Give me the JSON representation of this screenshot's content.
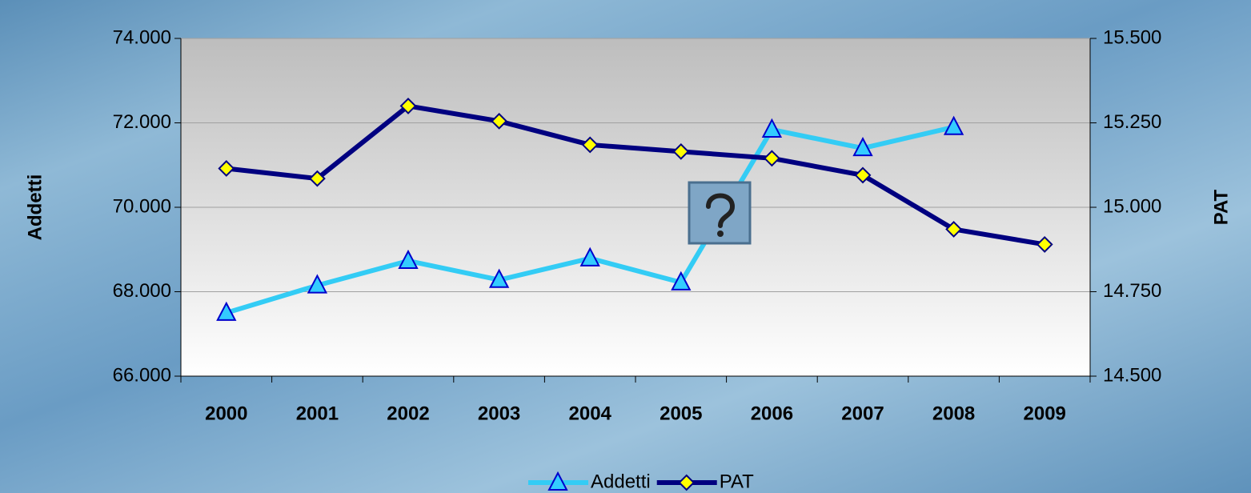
{
  "chart_data": {
    "type": "line",
    "categories": [
      "2000",
      "2001",
      "2002",
      "2003",
      "2004",
      "2005",
      "2006",
      "2007",
      "2008",
      "2009"
    ],
    "series": [
      {
        "name": "Addetti",
        "color": "#33ccf5",
        "marker_fill": "#33ccff",
        "marker_stroke": "#0000cc",
        "values": [
          67500,
          68150,
          68730,
          68280,
          68790,
          68220,
          71840,
          71400,
          71900,
          null
        ]
      },
      {
        "name": "PAT",
        "axis": "y2",
        "color": "#000080",
        "marker_fill": "#ffff00",
        "marker_stroke": "#000080",
        "values": [
          15115,
          15085,
          15300,
          15255,
          15185,
          15165,
          15145,
          15095,
          14935,
          14890
        ]
      }
    ],
    "ylabel": "Addetti",
    "y2label": "PAT",
    "ylim": [
      66000,
      74000
    ],
    "yticks": [
      {
        "value": 66000,
        "label": "66.000"
      },
      {
        "value": 68000,
        "label": "68.000"
      },
      {
        "value": 70000,
        "label": "70.000"
      },
      {
        "value": 72000,
        "label": "72.000"
      },
      {
        "value": 74000,
        "label": "74.000"
      }
    ],
    "y2lim": [
      14500,
      15500
    ],
    "y2ticks": [
      {
        "value": 14500,
        "label": "14.500"
      },
      {
        "value": 14750,
        "label": "14.750"
      },
      {
        "value": 15000,
        "label": "15.000"
      },
      {
        "value": 15250,
        "label": "15.250"
      },
      {
        "value": 15500,
        "label": "15.500"
      }
    ],
    "grid": true,
    "legend": "bottom"
  }
}
